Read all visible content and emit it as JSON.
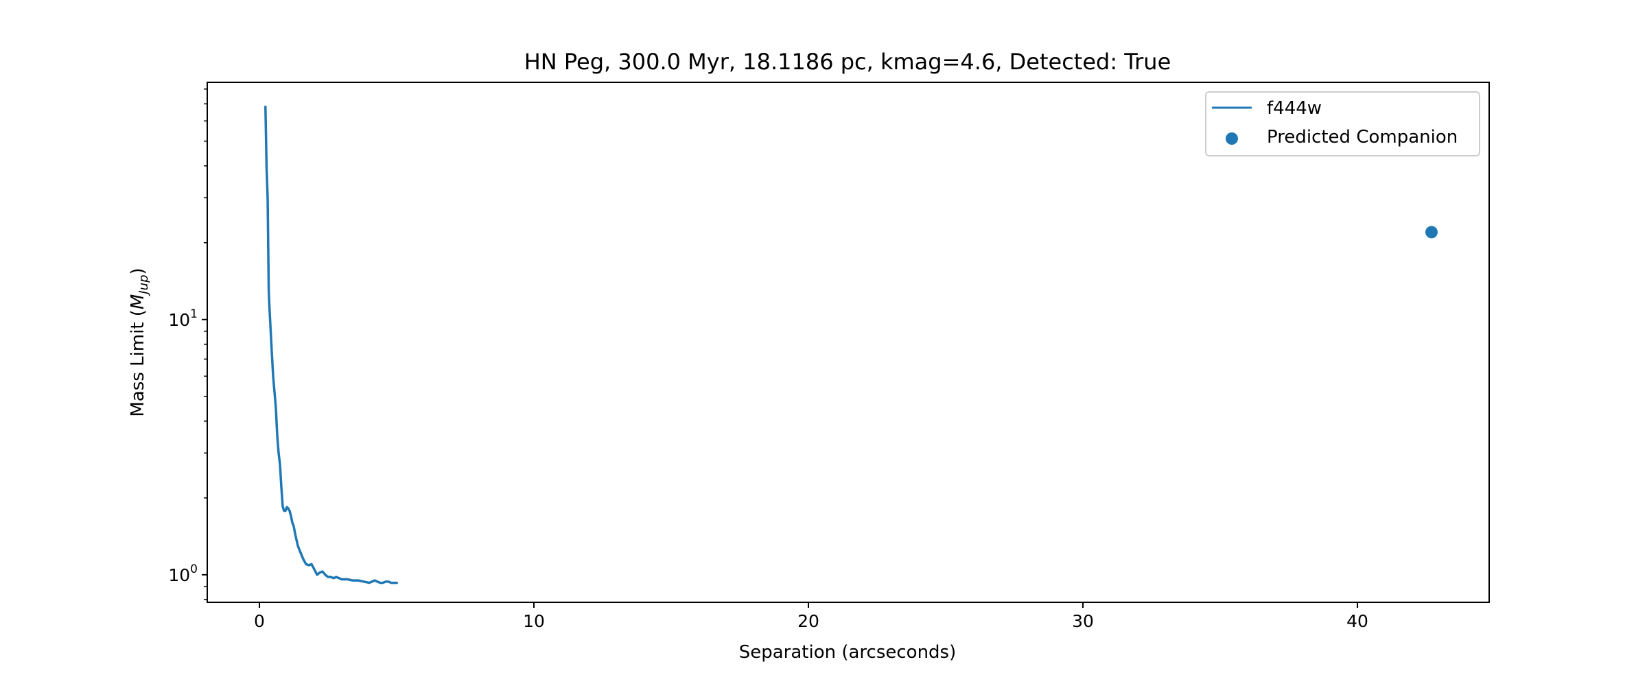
{
  "chart_data": {
    "type": "line",
    "title": "HN Peg, 300.0 Myr, 18.1186 pc, kmag=4.6, Detected: True",
    "xlabel": "Separation (arcseconds)",
    "ylabel_prefix": "Mass Limit (",
    "ylabel_symbol": "M",
    "ylabel_sub": "Jup",
    "ylabel_suffix": ")",
    "xlim": [
      -1.9,
      44.8
    ],
    "ylim": [
      0.78,
      85
    ],
    "yscale": "log",
    "xticks": [
      0,
      10,
      20,
      30,
      40
    ],
    "xtick_labels": [
      "0",
      "10",
      "20",
      "30",
      "40"
    ],
    "yticks_major": [
      1,
      10
    ],
    "ytick_labels": [
      {
        "base": "10",
        "exp": "0"
      },
      {
        "base": "10",
        "exp": "1"
      }
    ],
    "yticks_minor": [
      0.8,
      0.9,
      2,
      3,
      4,
      5,
      6,
      7,
      8,
      9,
      20,
      30,
      40,
      50,
      60,
      70,
      80
    ],
    "series": [
      {
        "name": "f444w",
        "kind": "line",
        "color": "#1f77b4",
        "x": [
          0.22,
          0.26,
          0.3,
          0.34,
          0.36,
          0.4,
          0.45,
          0.5,
          0.55,
          0.6,
          0.65,
          0.7,
          0.75,
          0.8,
          0.85,
          0.9,
          0.95,
          1.0,
          1.05,
          1.1,
          1.15,
          1.2,
          1.25,
          1.3,
          1.4,
          1.5,
          1.6,
          1.7,
          1.8,
          1.9,
          2.0,
          2.1,
          2.2,
          2.3,
          2.4,
          2.5,
          2.6,
          2.7,
          2.8,
          2.9,
          3.0,
          3.2,
          3.4,
          3.6,
          3.8,
          4.0,
          4.1,
          4.2,
          4.3,
          4.4,
          4.5,
          4.6,
          4.7,
          4.8,
          4.9,
          5.0
        ],
        "y": [
          68,
          40,
          30,
          13,
          11.5,
          9.5,
          7.5,
          6.0,
          5.2,
          4.5,
          3.5,
          3.0,
          2.7,
          2.2,
          1.85,
          1.78,
          1.78,
          1.84,
          1.82,
          1.78,
          1.7,
          1.6,
          1.55,
          1.45,
          1.3,
          1.22,
          1.15,
          1.1,
          1.09,
          1.1,
          1.05,
          1.0,
          1.02,
          1.03,
          1.0,
          0.98,
          0.98,
          0.97,
          0.98,
          0.97,
          0.96,
          0.96,
          0.95,
          0.95,
          0.94,
          0.93,
          0.94,
          0.95,
          0.94,
          0.93,
          0.93,
          0.94,
          0.94,
          0.93,
          0.93,
          0.93
        ]
      },
      {
        "name": "Predicted Companion",
        "kind": "scatter",
        "color": "#1f77b4",
        "x": [
          42.7
        ],
        "y": [
          22
        ]
      }
    ],
    "legend": {
      "position": "top-right",
      "entries": [
        "f444w",
        "Predicted Companion"
      ]
    }
  }
}
